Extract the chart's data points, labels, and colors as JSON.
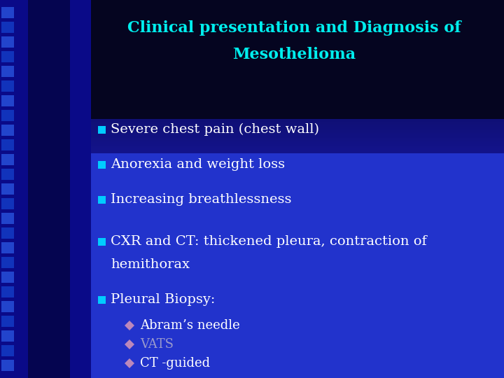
{
  "title_line1": "Clinical presentation and Diagnosis of",
  "title_line2": "Mesothelioma",
  "title_color": "#00EEEE",
  "title_fontsize": 16,
  "bg_color_main": "#2233CC",
  "bg_color_dark": "#000033",
  "left_strip_color": "#1111AA",
  "bullet_square_color": "#00CCFF",
  "bullet_fontsize": 14,
  "sub_bullet_fontsize": 13,
  "text_color_white": "#FFFFFF",
  "diamond_color": "#BB88BB",
  "vats_color": "#9999CC",
  "bullets": [
    "Severe chest pain (chest wall)",
    "Anorexia and weight loss",
    "Increasing breathlessness",
    "CXR and CT: thickened pleura, contraction of",
    "hemithorax",
    "Pleural Biopsy:"
  ],
  "sub_bullets": [
    "Abram’s needle",
    "VATS",
    "CT -guided"
  ]
}
